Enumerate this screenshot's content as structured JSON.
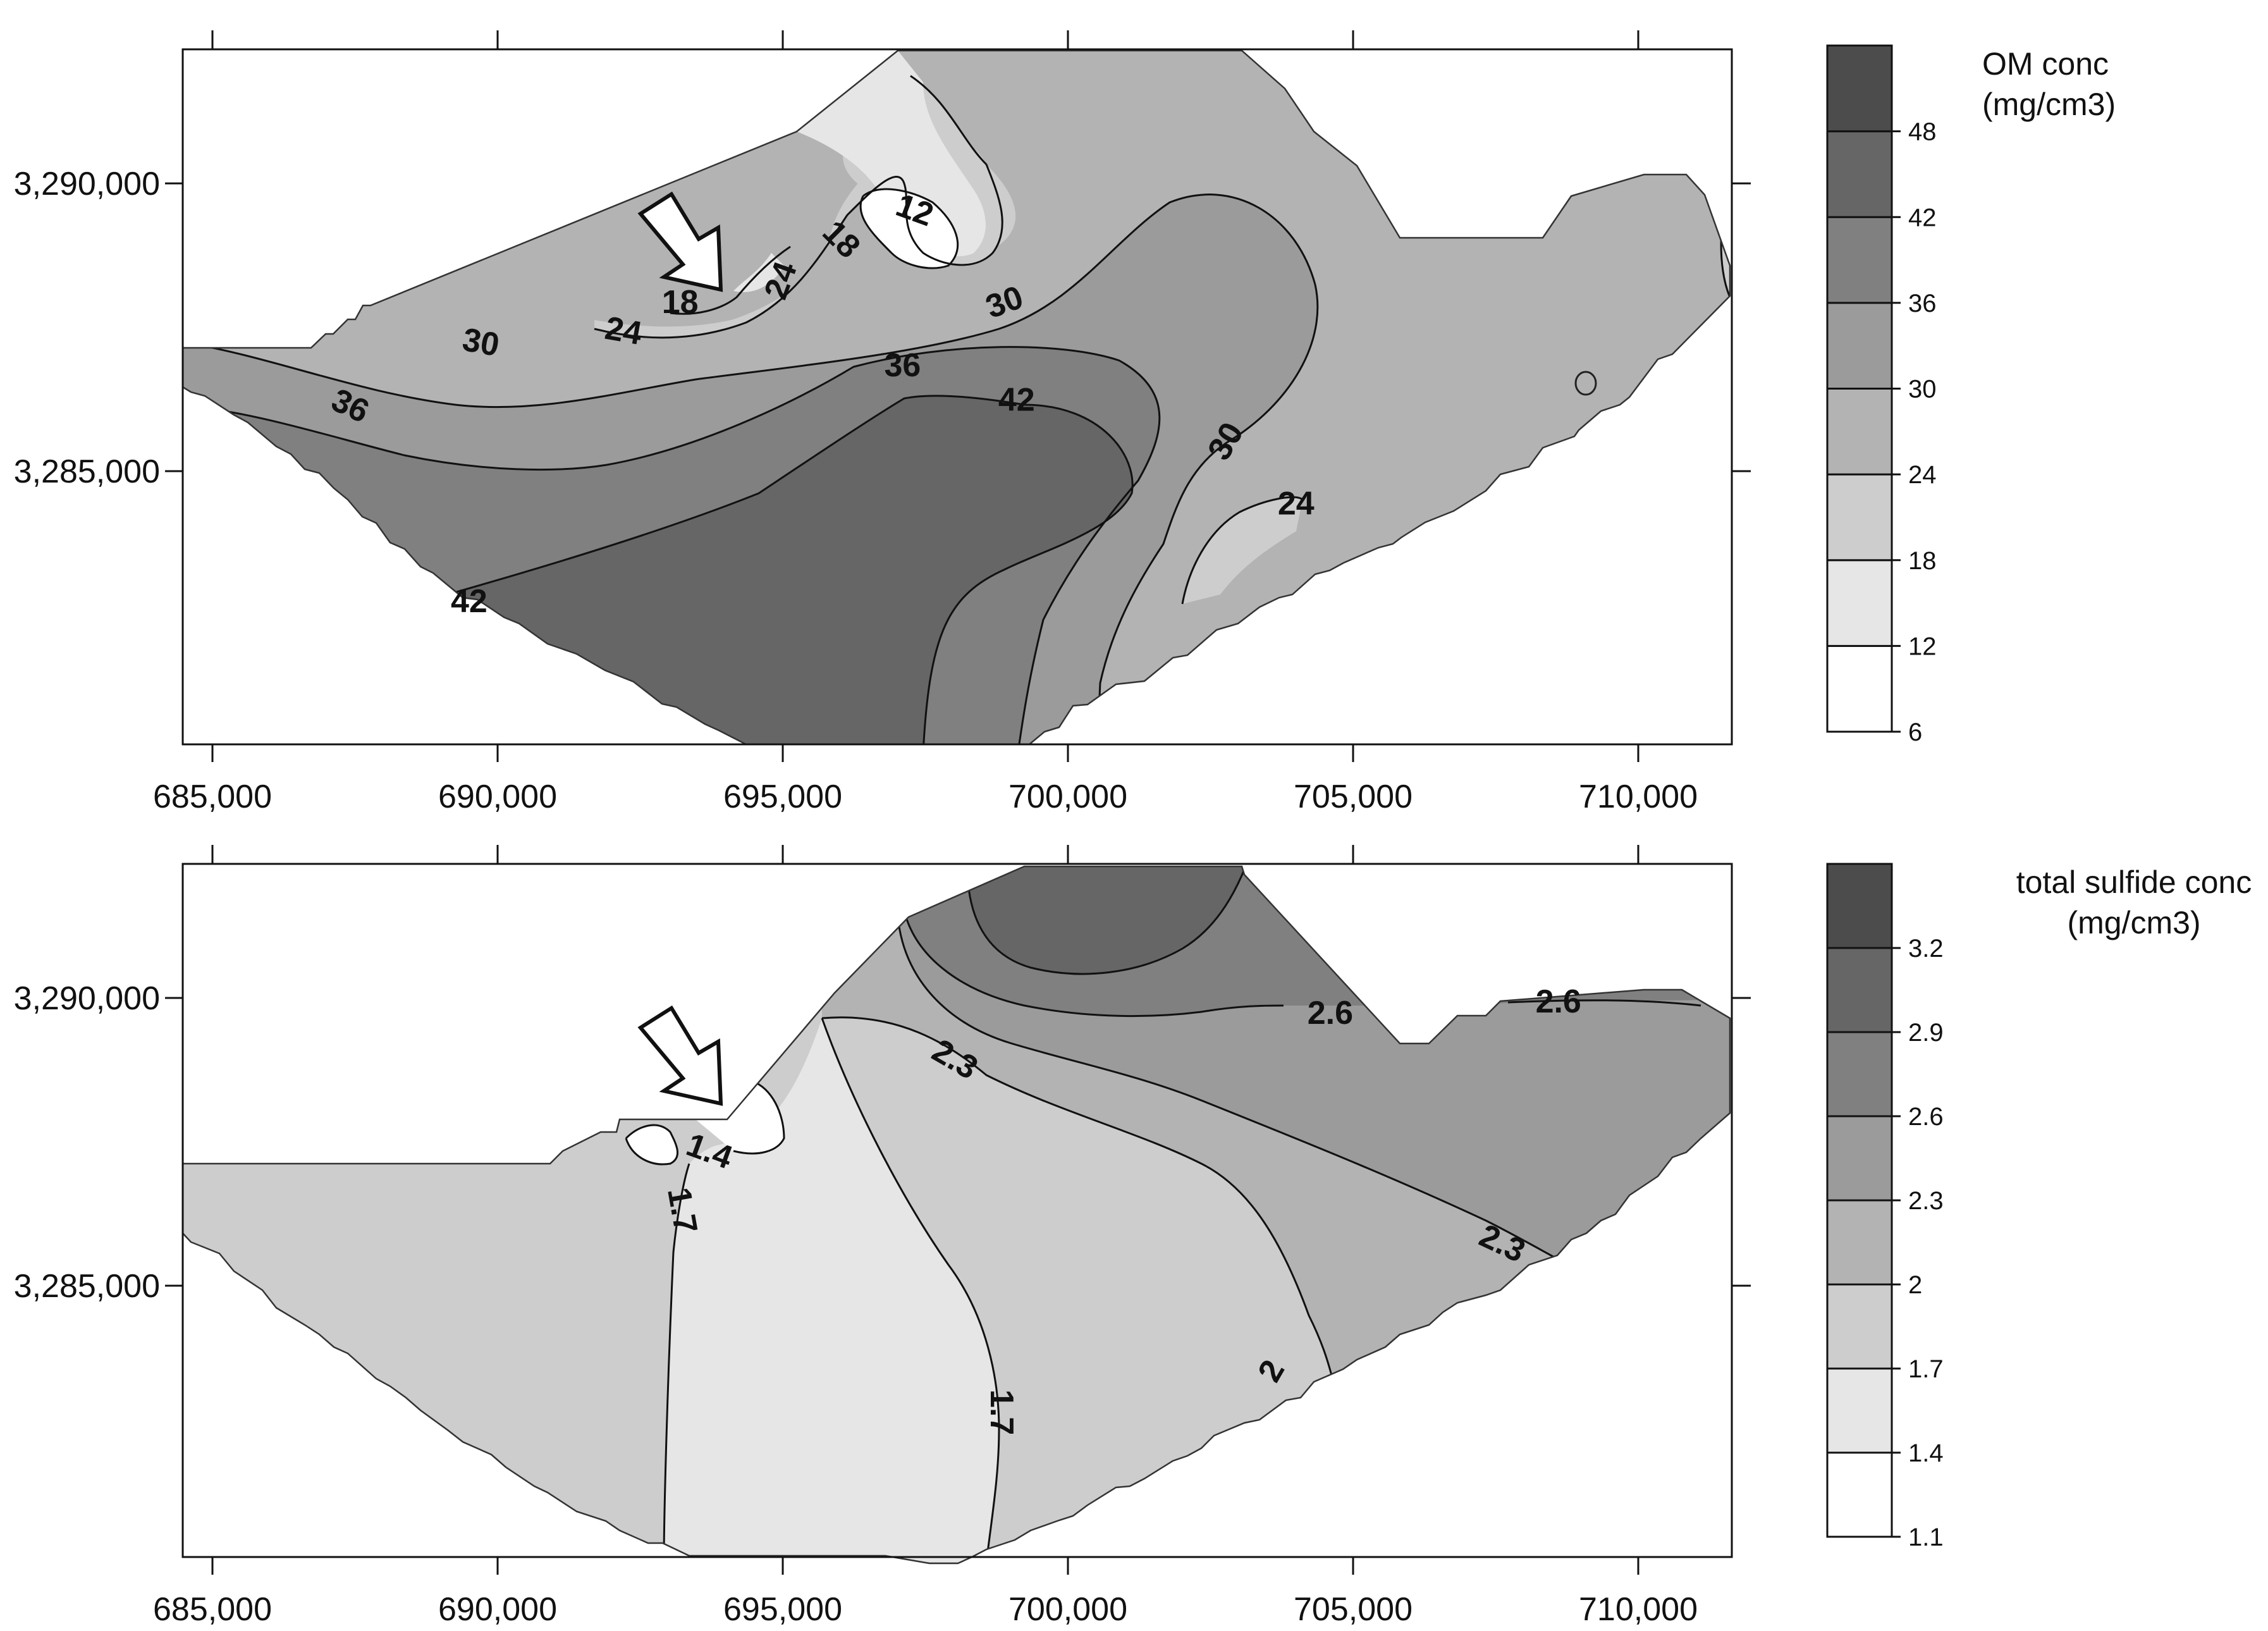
{
  "panels": [
    {
      "id": "om",
      "legend_title_lines": [
        "OM conc",
        "(mg/cm3)"
      ],
      "legend_levels": [
        "6",
        "12",
        "18",
        "24",
        "30",
        "36",
        "42",
        "48"
      ],
      "legend_colors": [
        "#ffffff",
        "#e6e6e6",
        "#cdcdcd",
        "#b3b3b3",
        "#9b9b9b",
        "#808080",
        "#666666",
        "#4c4c4c"
      ],
      "x_ticks": [
        "685,000",
        "690,000",
        "695,000",
        "700,000",
        "705,000",
        "710,000"
      ],
      "y_ticks": [
        "3,290,000",
        "3,285,000"
      ],
      "contour_labels": [
        {
          "text": "12",
          "x": 697.3,
          "y": 3289.5,
          "rot": 20
        },
        {
          "text": "18",
          "x": 696.0,
          "y": 3289.0,
          "rot": 45
        },
        {
          "text": "18",
          "x": 693.2,
          "y": 3287.9,
          "rot": 0
        },
        {
          "text": "24",
          "x": 695.0,
          "y": 3288.3,
          "rot": -70
        },
        {
          "text": "24",
          "x": 692.2,
          "y": 3287.4,
          "rot": 10
        },
        {
          "text": "30",
          "x": 698.9,
          "y": 3287.9,
          "rot": -20
        },
        {
          "text": "30",
          "x": 689.7,
          "y": 3287.2,
          "rot": 10
        },
        {
          "text": "36",
          "x": 697.1,
          "y": 3286.8,
          "rot": 0
        },
        {
          "text": "36",
          "x": 687.4,
          "y": 3286.1,
          "rot": 25
        },
        {
          "text": "42",
          "x": 699.1,
          "y": 3286.2,
          "rot": 0
        },
        {
          "text": "42",
          "x": 689.5,
          "y": 3282.7,
          "rot": 0
        },
        {
          "text": "30",
          "x": 702.8,
          "y": 3285.5,
          "rot": -60
        },
        {
          "text": "24",
          "x": 704.0,
          "y": 3284.4,
          "rot": 0
        }
      ]
    },
    {
      "id": "sulfide",
      "legend_title_lines": [
        "total sulfide conc",
        "(mg/cm3)"
      ],
      "legend_levels": [
        "1.1",
        "1.4",
        "1.7",
        "2",
        "2.3",
        "2.6",
        "2.9",
        "3.2"
      ],
      "legend_colors": [
        "#ffffff",
        "#e6e6e6",
        "#cdcdcd",
        "#b3b3b3",
        "#9b9b9b",
        "#808080",
        "#666666",
        "#4c4c4c"
      ],
      "x_ticks": [
        "685,000",
        "690,000",
        "695,000",
        "700,000",
        "705,000",
        "710,000"
      ],
      "y_ticks": [
        "3,290,000",
        "3,285,000"
      ],
      "contour_labels": [
        {
          "text": "1.4",
          "x": 693.7,
          "y": 3287.3,
          "rot": 20
        },
        {
          "text": "1.7",
          "x": 693.2,
          "y": 3286.3,
          "rot": 80
        },
        {
          "text": "2.3",
          "x": 698.0,
          "y": 3288.9,
          "rot": 30
        },
        {
          "text": "2.6",
          "x": 704.6,
          "y": 3289.7,
          "rot": 0
        },
        {
          "text": "2.6",
          "x": 708.6,
          "y": 3289.9,
          "rot": 0
        },
        {
          "text": "2.3",
          "x": 707.6,
          "y": 3285.7,
          "rot": 25
        },
        {
          "text": "2",
          "x": 703.6,
          "y": 3283.5,
          "rot": -60
        },
        {
          "text": "1.7",
          "x": 698.8,
          "y": 3282.8,
          "rot": 90
        }
      ]
    }
  ]
}
